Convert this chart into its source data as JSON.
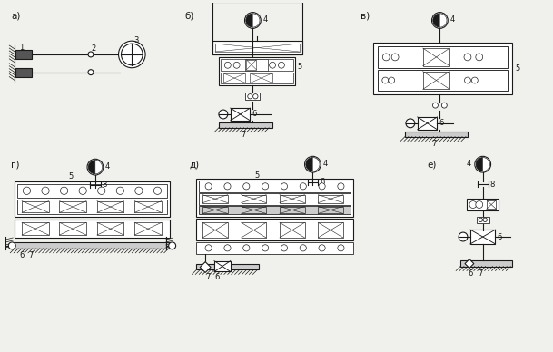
{
  "bg_color": "#f0f0ec",
  "lc": "#1a1a1a",
  "lf": "#cccccc",
  "lf2": "#aaaaaa",
  "labels": [
    "а)",
    "б)",
    "в)",
    "г)",
    "д)",
    "е)"
  ],
  "nums": [
    "1",
    "2",
    "3",
    "4",
    "5",
    "6",
    "7",
    "8"
  ]
}
